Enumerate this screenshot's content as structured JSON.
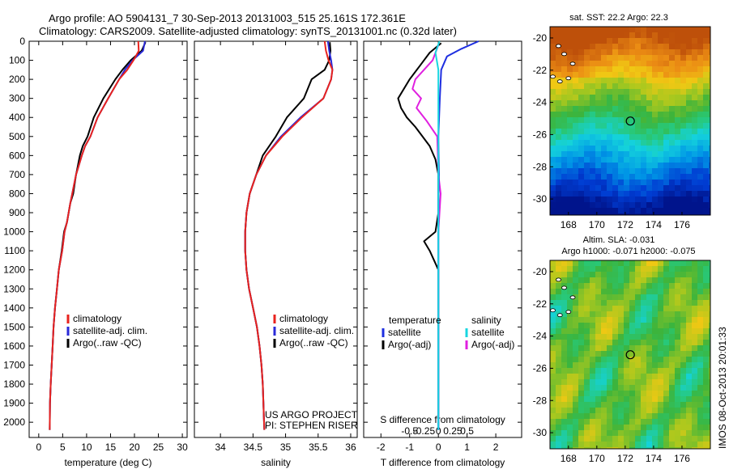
{
  "header": {
    "line1": "Argo profile: AO 5904131_7 30-Sep-2013 20131003_515 25.161S 172.361E",
    "line2": "Climatology: CARS2009. Satellite-adjusted climatology: synTS_20131001.nc (0.32d later)"
  },
  "colors": {
    "climatology": "#e8231e",
    "satellite": "#2a2ad8",
    "argo": "#000000",
    "t_satellite": "#1e2fe0",
    "s_satellite": "#18d6e0",
    "s_argo": "#e020e0"
  },
  "stamp": "IMOS 08-Oct-2013 20:01:33",
  "chart_data": [
    {
      "type": "line",
      "xlabel": "temperature (deg C)",
      "ylabel": "",
      "xlim": [
        -2,
        31
      ],
      "ylim": [
        2080,
        0
      ],
      "xticks": [
        0,
        5,
        10,
        15,
        20,
        25,
        30
      ],
      "yticks": [
        0,
        100,
        200,
        300,
        400,
        500,
        600,
        700,
        800,
        900,
        1000,
        1100,
        1200,
        1300,
        1400,
        1500,
        1600,
        1700,
        1800,
        1900,
        2000
      ],
      "legend": [
        "climatology",
        "satellite-adj. clim.",
        "Argo(..raw -QC)"
      ],
      "legend_position": "lower-middle",
      "series": [
        {
          "name": "climatology",
          "x": [
            20.8,
            20.9,
            19.8,
            18.5,
            16.8,
            14.5,
            12.3,
            10.8,
            9.7,
            9.0,
            8.4,
            7.8,
            7.0,
            6.6,
            5.9,
            5.4,
            4.9,
            4.2,
            3.8,
            3.4,
            3.1,
            2.9,
            2.7,
            2.5,
            2.35,
            2.3
          ],
          "y": [
            0,
            50,
            100,
            150,
            200,
            300,
            400,
            500,
            550,
            600,
            650,
            700,
            800,
            850,
            950,
            1000,
            1100,
            1200,
            1300,
            1400,
            1500,
            1600,
            1700,
            1800,
            1900,
            2040
          ]
        },
        {
          "name": "satellite-adj. clim.",
          "x": [
            22.2,
            21.8,
            19.6,
            18.0,
            16.8,
            14.5,
            12.3,
            10.8,
            9.7,
            9.0,
            8.4,
            7.8,
            7.0,
            6.6,
            5.9,
            5.4,
            4.9,
            4.2,
            3.8,
            3.4,
            3.1,
            2.9,
            2.7,
            2.5,
            2.35,
            2.3
          ],
          "y": [
            0,
            50,
            100,
            150,
            200,
            300,
            400,
            500,
            550,
            600,
            650,
            700,
            800,
            850,
            950,
            1000,
            1100,
            1200,
            1300,
            1400,
            1500,
            1600,
            1700,
            1800,
            1900,
            2040
          ]
        },
        {
          "name": "Argo(..raw -QC)",
          "x": [
            22.3,
            21.5,
            19.2,
            17.5,
            16.0,
            13.5,
            11.5,
            10.2,
            9.2,
            8.6,
            8.2,
            7.8,
            7.2,
            6.6,
            5.9,
            5.3,
            4.8,
            4.2,
            3.8,
            3.4,
            3.1,
            2.9,
            2.7,
            2.5,
            2.35,
            2.3
          ],
          "y": [
            5,
            50,
            100,
            150,
            200,
            300,
            400,
            500,
            550,
            600,
            650,
            700,
            800,
            850,
            950,
            1000,
            1100,
            1200,
            1300,
            1400,
            1500,
            1600,
            1700,
            1800,
            1900,
            2040
          ]
        }
      ]
    },
    {
      "type": "line",
      "xlabel": "salinity",
      "ylabel": "",
      "xlim": [
        33.6,
        36.1
      ],
      "ylim": [
        2080,
        0
      ],
      "xticks": [
        34,
        34.5,
        35,
        35.5,
        36
      ],
      "legend": [
        "climatology",
        "satellite-adj. clim.",
        "Argo(..raw -QC)"
      ],
      "legend_position": "lower-middle",
      "annotation": [
        "US ARGO PROJECT",
        "PI: STEPHEN RISER"
      ],
      "series": [
        {
          "name": "climatology",
          "x": [
            35.6,
            35.62,
            35.66,
            35.72,
            35.7,
            35.58,
            35.25,
            34.95,
            34.7,
            34.55,
            34.45,
            34.4,
            34.38,
            34.38,
            34.4,
            34.44,
            34.5,
            34.56,
            34.6,
            34.63,
            34.65,
            34.66,
            34.67,
            34.675
          ],
          "y": [
            0,
            50,
            100,
            150,
            200,
            300,
            400,
            500,
            600,
            700,
            800,
            900,
            1000,
            1100,
            1200,
            1300,
            1400,
            1500,
            1600,
            1700,
            1800,
            1900,
            2000,
            2040
          ]
        },
        {
          "name": "satellite-adj. clim.",
          "x": [
            35.65,
            35.67,
            35.7,
            35.72,
            35.7,
            35.58,
            35.23,
            34.93,
            34.7,
            34.55,
            34.45,
            34.4,
            34.38,
            34.38,
            34.4,
            34.44,
            34.5,
            34.56,
            34.6,
            34.63,
            34.65,
            34.66,
            34.67,
            34.675
          ],
          "y": [
            0,
            50,
            100,
            150,
            200,
            300,
            400,
            500,
            600,
            700,
            800,
            900,
            1000,
            1100,
            1200,
            1300,
            1400,
            1500,
            1600,
            1700,
            1800,
            1900,
            2000,
            2040
          ]
        },
        {
          "name": "Argo(..raw -QC)",
          "x": [
            35.68,
            35.69,
            35.67,
            35.6,
            35.4,
            35.28,
            35.02,
            34.85,
            34.65,
            34.55,
            34.45,
            34.4,
            34.38,
            34.38,
            34.4,
            34.44,
            34.5,
            34.56,
            34.6,
            34.63,
            34.65,
            34.66,
            34.67,
            34.675
          ],
          "y": [
            5,
            50,
            100,
            150,
            200,
            300,
            400,
            500,
            600,
            700,
            800,
            900,
            1000,
            1100,
            1200,
            1300,
            1400,
            1500,
            1600,
            1700,
            1800,
            1900,
            2000,
            2040
          ]
        }
      ]
    },
    {
      "type": "line",
      "xlabel": "T difference from climatology",
      "x2label": "S difference from climatology",
      "xlim": [
        -2.6,
        2.9
      ],
      "xticks": [
        -2,
        -1,
        0,
        1,
        2
      ],
      "x2ticks": [
        -0.5,
        -0.25,
        0,
        0.25,
        0.5
      ],
      "ylim": [
        2080,
        0
      ],
      "legend_groups": [
        {
          "title": "temperature",
          "items": [
            "satellite",
            "Argo(-adj)"
          ]
        },
        {
          "title": "salinity",
          "items": [
            "satellite",
            "Argo(-adj)"
          ]
        }
      ],
      "series": [
        {
          "name": "T satellite",
          "x": [
            1.4,
            0.8,
            0.3,
            0.1,
            0.05,
            0.0,
            0.02,
            0.0,
            0.0,
            0.0,
            0.0,
            0.0,
            0.0,
            0.0,
            0.0,
            0.0
          ],
          "y": [
            0,
            40,
            80,
            150,
            300,
            500,
            700,
            800,
            900,
            1000,
            1200,
            1400,
            1600,
            1800,
            2000,
            2040
          ]
        },
        {
          "name": "T Argo(-adj)",
          "x": [
            0.1,
            -0.3,
            -0.6,
            -1.0,
            -1.4,
            -1.3,
            -1.1,
            -0.8,
            -0.3,
            -0.1,
            0.0,
            0.0,
            -0.1,
            -0.5,
            -0.3,
            0.0,
            0.0,
            0.0
          ],
          "y": [
            10,
            60,
            120,
            200,
            300,
            350,
            400,
            450,
            550,
            620,
            700,
            900,
            1000,
            1050,
            1100,
            1200,
            1600,
            2040
          ]
        },
        {
          "name": "S satellite",
          "x": [
            0.02,
            -0.05,
            0.0,
            0.0,
            0.0,
            0.0,
            0.0,
            0.0
          ],
          "y": [
            0,
            60,
            150,
            300,
            600,
            1000,
            1500,
            2040
          ]
        },
        {
          "name": "S Argo(-adj)",
          "x": [
            0.0,
            -0.1,
            -0.4,
            -0.45,
            -0.3,
            -0.38,
            -0.2,
            -0.02,
            0.0,
            0.04,
            0.0,
            0.0
          ],
          "y": [
            20,
            100,
            200,
            250,
            300,
            350,
            420,
            500,
            700,
            800,
            1000,
            2040
          ]
        }
      ]
    },
    {
      "type": "heatmap",
      "title": "sat. SST: 22.2 Argo: 22.3",
      "xlim": [
        166.7,
        178
      ],
      "ylim": [
        -31,
        -19.3
      ],
      "xticks": [
        168,
        170,
        172,
        174,
        176
      ],
      "yticks": [
        -20,
        -22,
        -24,
        -26,
        -28,
        -30
      ],
      "marker": {
        "lon": 172.36,
        "lat": -25.16
      }
    },
    {
      "type": "heatmap",
      "title": "Altim. SLA: -0.031",
      "subtitle": "Argo h1000: -0.071 h2000: -0.075",
      "xlim": [
        166.7,
        178
      ],
      "ylim": [
        -31,
        -19.3
      ],
      "xticks": [
        168,
        170,
        172,
        174,
        176
      ],
      "yticks": [
        -20,
        -22,
        -24,
        -26,
        -28,
        -30
      ],
      "marker": {
        "lon": 172.36,
        "lat": -25.16
      }
    }
  ]
}
